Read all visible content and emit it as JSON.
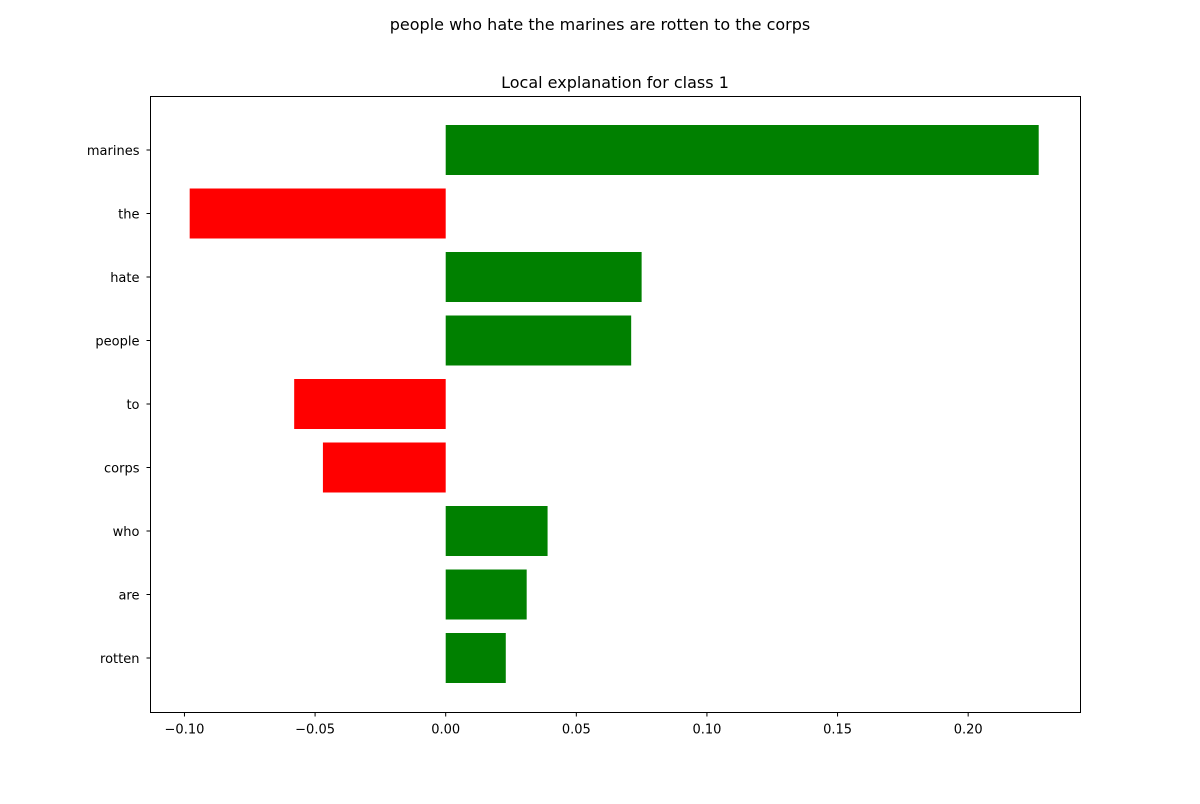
{
  "figure": {
    "suptitle": "people who hate the marines are rotten to the corps"
  },
  "chart_data": {
    "type": "bar",
    "orientation": "horizontal",
    "title": "Local explanation for class 1",
    "xlabel": "",
    "ylabel": "",
    "categories": [
      "marines",
      "the",
      "hate",
      "people",
      "to",
      "corps",
      "who",
      "are",
      "rotten"
    ],
    "values": [
      0.227,
      -0.098,
      0.075,
      0.071,
      -0.058,
      -0.047,
      0.039,
      0.031,
      0.023
    ],
    "colors": {
      "positive": "#008000",
      "negative": "#ff0000"
    },
    "xlim": [
      -0.113,
      0.243
    ],
    "xticks": [
      -0.1,
      -0.05,
      0.0,
      0.05,
      0.1,
      0.15,
      0.2
    ],
    "xtick_labels": [
      "−0.10",
      "−0.05",
      "0.00",
      "0.05",
      "0.10",
      "0.15",
      "0.20"
    ],
    "grid": false,
    "legend": "none"
  }
}
